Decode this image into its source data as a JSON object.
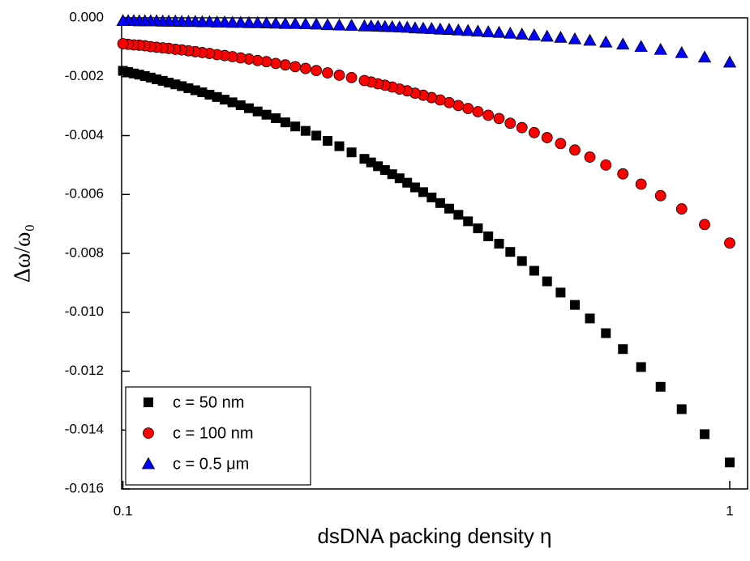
{
  "chart_data": {
    "type": "scatter",
    "xlabel": "dsDNA packing density η",
    "ylabel": "Δω/ω₀",
    "xscale": "log",
    "xlim": [
      0.0995,
      1.07
    ],
    "xticks": [
      0.1,
      1
    ],
    "ylim": [
      -0.016,
      0
    ],
    "yticks": [
      {
        "value": 0,
        "label": "0.000"
      },
      {
        "value": -0.002,
        "label": "-0.002"
      },
      {
        "value": -0.004,
        "label": "-0.004"
      },
      {
        "value": -0.006,
        "label": "-0.006"
      },
      {
        "value": -0.008,
        "label": "-0.008"
      },
      {
        "value": -0.01,
        "label": "-0.010"
      },
      {
        "value": -0.012,
        "label": "-0.012"
      },
      {
        "value": -0.014,
        "label": "-0.014"
      },
      {
        "value": -0.016,
        "label": "-0.016"
      }
    ],
    "legend": "lower left",
    "x": [
      1,
      0.9091,
      0.8333,
      0.7692,
      0.7143,
      0.6667,
      0.625,
      0.5882,
      0.5556,
      0.5263,
      0.5,
      0.4762,
      0.4545,
      0.4348,
      0.4167,
      0.4,
      0.3846,
      0.3704,
      0.3571,
      0.3448,
      0.3333,
      0.3226,
      0.3125,
      0.303,
      0.2941,
      0.2857,
      0.2778,
      0.2703,
      0.2632,
      0.2564,
      0.25,
      0.2381,
      0.2273,
      0.2174,
      0.2083,
      0.2,
      0.1923,
      0.1852,
      0.1786,
      0.1724,
      0.1667,
      0.1613,
      0.1563,
      0.1515,
      0.1471,
      0.1429,
      0.1389,
      0.1351,
      0.1316,
      0.1282,
      0.125,
      0.122,
      0.119,
      0.1163,
      0.1136,
      0.1111,
      0.1087,
      0.1064,
      0.1042,
      0.102,
      0.1
    ],
    "series": [
      {
        "name": "c = 50 nm",
        "color": "#000000",
        "marker": "square",
        "values": [
          -0.0151,
          -0.01414,
          -0.01329,
          -0.01253,
          -0.01186,
          -0.01125,
          -0.01071,
          -0.01021,
          -0.00975,
          -0.00933,
          -0.00895,
          -0.00859,
          -0.00826,
          -0.00795,
          -0.00767,
          -0.00742,
          -0.00715,
          -0.00691,
          -0.00669,
          -0.00648,
          -0.00629,
          -0.0061,
          -0.00592,
          -0.00576,
          -0.0056,
          -0.00545,
          -0.00531,
          -0.00517,
          -0.00504,
          -0.00491,
          -0.00479,
          -0.00457,
          -0.00436,
          -0.00418,
          -0.004,
          -0.00384,
          -0.00369,
          -0.00355,
          -0.00341,
          -0.00329,
          -0.00318,
          -0.00307,
          -0.00297,
          -0.00287,
          -0.00278,
          -0.00269,
          -0.00261,
          -0.00253,
          -0.00246,
          -0.00239,
          -0.00232,
          -0.00226,
          -0.0022,
          -0.00214,
          -0.00209,
          -0.00203,
          -0.00198,
          -0.00193,
          -0.00189,
          -0.00184,
          -0.0018
        ]
      },
      {
        "name": "c = 100 nm",
        "color": "#ff0000",
        "marker": "circle",
        "values": [
          -0.00765,
          -0.00702,
          -0.00649,
          -0.00604,
          -0.00565,
          -0.0053,
          -0.005,
          -0.00473,
          -0.00449,
          -0.00427,
          -0.00407,
          -0.0039,
          -0.00373,
          -0.00358,
          -0.00342,
          -0.00331,
          -0.00319,
          -0.00308,
          -0.00298,
          -0.00288,
          -0.00279,
          -0.00271,
          -0.00263,
          -0.00256,
          -0.00248,
          -0.00242,
          -0.00235,
          -0.00229,
          -0.00224,
          -0.00218,
          -0.00213,
          -0.00203,
          -0.00195,
          -0.00187,
          -0.00179,
          -0.00172,
          -0.00166,
          -0.0016,
          -0.00155,
          -0.00149,
          -0.00145,
          -0.0014,
          -0.00136,
          -0.00132,
          -0.00128,
          -0.00125,
          -0.00121,
          -0.00118,
          -0.00115,
          -0.00112,
          -0.00109,
          -0.00107,
          -0.00104,
          -0.00102,
          -0.001,
          -0.00098,
          -0.00095,
          -0.00093,
          -0.00092,
          -0.0009,
          -0.00088
        ]
      },
      {
        "name": "c = 0.5 μm",
        "color": "#0000ff",
        "marker": "triangle",
        "values": [
          -0.00151,
          -0.00134,
          -0.00119,
          -0.00108,
          -0.00098,
          -0.0009,
          -0.00083,
          -0.00077,
          -0.00072,
          -0.00067,
          -0.00063,
          -0.00059,
          -0.00056,
          -0.00053,
          -0.0005,
          -0.00048,
          -0.00046,
          -0.00044,
          -0.00042,
          -0.0004,
          -0.00039,
          -0.00037,
          -0.00036,
          -0.00035,
          -0.00033,
          -0.00032,
          -0.00031,
          -0.0003,
          -0.00029,
          -0.00028,
          -0.00028,
          -0.00026,
          -0.00025,
          -0.00024,
          -0.00022,
          -0.00021,
          -0.0002,
          -0.0002,
          -0.00019,
          -0.00018,
          -0.00017,
          -0.00017,
          -0.00016,
          -0.00016,
          -0.00015,
          -0.00015,
          -0.00014,
          -0.00014,
          -0.00013,
          -0.00013,
          -0.00013,
          -0.00012,
          -0.00012,
          -0.00012,
          -0.00011,
          -0.00011,
          -0.00011,
          -0.00011,
          -0.0001,
          -0.0001,
          -0.0001
        ]
      }
    ]
  }
}
